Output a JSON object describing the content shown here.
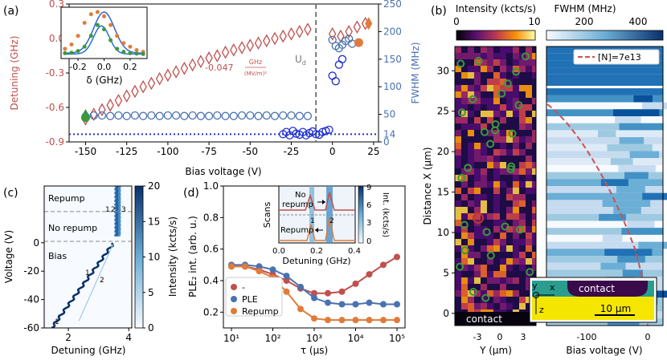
{
  "panel_labels": {
    "a": "(a)",
    "b": "(b)",
    "c": "(c)",
    "d": "(d)"
  },
  "colors": {
    "detuning": "#c0504d",
    "fwhm": "#4a72b0",
    "blue_dark": "#1f2fd0",
    "orange": "#e07b39",
    "green": "#3a9a3a",
    "dash": "#777777"
  },
  "chart_data": [
    {
      "id": "a",
      "type": "scatter",
      "xlabel": "Bias voltage (V)",
      "ylabel_left": "Detuning (GHz)",
      "ylabel_right": "FWHM (MHz)",
      "xlim": [
        -160,
        28
      ],
      "ylim_left": [
        -0.9,
        0.3
      ],
      "ylim_right": [
        0,
        250
      ],
      "x_ticks": [
        -150,
        -125,
        -100,
        -75,
        -50,
        -25,
        0,
        25
      ],
      "y_left_ticks": [
        -0.9,
        -0.6,
        -0.3,
        0.0,
        0.3
      ],
      "y_left_tick_labels": [
        "-0.9",
        "-0.6",
        "-0.3",
        "0.0",
        "0.3"
      ],
      "y_right_ticks": [
        0,
        50,
        100,
        150,
        200,
        250
      ],
      "y_right_tick_labels": [
        "0",
        "50",
        "100",
        "150",
        "200",
        "250"
      ],
      "extra_right_label": "14",
      "annotation_ud": "U",
      "annotation_ud_sub": "d",
      "annotation_slope": "-0.047",
      "annotation_slope_unit_top": "GHz",
      "annotation_slope_unit_bottom": "(MV/m)²",
      "ud_voltage": -10,
      "hline_fwhm_mhz": 14,
      "detuning_series": {
        "x": [
          -150,
          -145,
          -140,
          -135,
          -130,
          -125,
          -120,
          -115,
          -110,
          -105,
          -100,
          -95,
          -90,
          -85,
          -80,
          -75,
          -70,
          -65,
          -60,
          -55,
          -50,
          -45,
          -40,
          -35,
          -30,
          -25,
          -20,
          -15,
          0,
          5,
          10,
          15,
          20
        ],
        "y": [
          -0.7,
          -0.66,
          -0.62,
          -0.58,
          -0.54,
          -0.5,
          -0.46,
          -0.42,
          -0.39,
          -0.35,
          -0.32,
          -0.29,
          -0.26,
          -0.23,
          -0.2,
          -0.17,
          -0.15,
          -0.12,
          -0.1,
          -0.08,
          -0.06,
          -0.04,
          -0.02,
          0.0,
          0.02,
          0.04,
          0.06,
          0.08,
          0.04,
          0.02,
          0.06,
          0.1,
          0.13
        ]
      },
      "detuning_special": [
        {
          "x": -150,
          "y": -0.67,
          "color": "green"
        },
        {
          "x": 22,
          "y": 0.13,
          "color": "orange"
        }
      ],
      "fwhm_open_series": {
        "x": [
          -150,
          -145,
          -140,
          -135,
          -130,
          -125,
          -120,
          -115,
          -110,
          -105,
          -100,
          -95,
          -90,
          -85,
          -80,
          -75,
          -70,
          -65,
          -60,
          -55,
          -50,
          -45,
          -40,
          -35,
          -30,
          -25,
          -20,
          -15,
          0,
          2,
          4,
          6,
          8,
          10,
          12
        ],
        "y": [
          46,
          48,
          48,
          47,
          48,
          47,
          48,
          47,
          48,
          47,
          48,
          48,
          47,
          48,
          47,
          47,
          48,
          47,
          47,
          48,
          48,
          47,
          48,
          47,
          48,
          48,
          47,
          47,
          185,
          174,
          170,
          176,
          183,
          187,
          178
        ]
      },
      "fwhm_dark_series": {
        "x": [
          -30,
          -28,
          -26,
          -24,
          -22,
          -20,
          -18,
          -16,
          -14,
          -12,
          -10,
          -8,
          -6,
          -4,
          -2,
          0,
          2,
          4,
          6
        ],
        "y": [
          14,
          18,
          12,
          20,
          15,
          13,
          18,
          12,
          16,
          19,
          14,
          13,
          18,
          20,
          22,
          120,
          110,
          140,
          150
        ]
      },
      "fwhm_special": [
        {
          "x": -150,
          "y": 44,
          "color": "green"
        },
        {
          "x": 16,
          "y": 180,
          "color": "orange"
        }
      ],
      "inset": {
        "xlabel": "δ (GHz)",
        "x_ticks": [
          -0.2,
          0.0,
          0.2
        ],
        "x_tick_labels": [
          "-0.2",
          "0.0",
          "0.2"
        ],
        "series": [
          {
            "name": "orange",
            "x": [
              -0.3,
              -0.25,
              -0.2,
              -0.15,
              -0.1,
              -0.05,
              0.0,
              0.05,
              0.1,
              0.15,
              0.2,
              0.25,
              0.3
            ],
            "y": [
              0.15,
              0.25,
              0.45,
              0.75,
              0.95,
              1.0,
              0.9,
              0.7,
              0.45,
              0.28,
              0.2,
              0.12,
              0.08
            ]
          },
          {
            "name": "green",
            "x": [
              -0.3,
              -0.25,
              -0.2,
              -0.15,
              -0.1,
              -0.05,
              0.0,
              0.05,
              0.1,
              0.15,
              0.2,
              0.25,
              0.3
            ],
            "y": [
              0.05,
              0.06,
              0.1,
              0.2,
              0.45,
              0.7,
              0.6,
              0.35,
              0.15,
              0.08,
              0.05,
              0.04,
              0.03
            ]
          }
        ]
      }
    },
    {
      "id": "b",
      "type": "heatmap",
      "ylabel": "Distance X (μm)",
      "left": {
        "colorbar_label": "Intensity (kcts/s)",
        "colorbar_ticks": [
          "0",
          "10"
        ],
        "xlabel": "Y (μm)",
        "x_ticks": [
          "-3",
          "0",
          "3"
        ],
        "contact_label": "contact"
      },
      "right": {
        "colorbar_label": "FWHM (MHz)",
        "colorbar_ticks": [
          "200",
          "400"
        ],
        "xlabel": "Bias voltage (V)",
        "x_ticks": [
          "-100",
          "0"
        ],
        "legend_label": "[N]=7e13"
      },
      "y_ticks": [
        0,
        5,
        10,
        15,
        20,
        25,
        30
      ],
      "ylim": [
        -1.5,
        33
      ],
      "inset": {
        "contact_label": "contact",
        "scale_label": "10 μm",
        "axis_y": "y",
        "axis_x": "x",
        "axis_z": "z"
      }
    },
    {
      "id": "c",
      "type": "heatmap",
      "xlabel": "Detuning (GHz)",
      "ylabel": "Voltage (V)",
      "colorbar_label": "Intensity (kcts/s)",
      "x_ticks": [
        2,
        4
      ],
      "xlim": [
        1.2,
        4.1
      ],
      "y_ticks": [
        -60,
        -40,
        -20,
        0
      ],
      "ylim": [
        -60,
        40
      ],
      "colorbar_ticks": [
        0,
        5,
        10,
        15,
        20
      ],
      "region_labels": [
        "Repump",
        "No repump",
        "Bias"
      ],
      "mark_labels": [
        "1",
        "2",
        "1",
        "2",
        "3",
        "1"
      ]
    },
    {
      "id": "d",
      "type": "scatter",
      "xlabel": "τ (μs)",
      "ylabel": "PLE₂ int. (arb. u.)",
      "ylim": [
        0.1,
        1.0
      ],
      "y_ticks": [
        0.2,
        0.4,
        0.6,
        0.8,
        1.0
      ],
      "y_tick_labels": [
        "0.2",
        "0.4",
        "0.6",
        "0.8",
        "1.0"
      ],
      "x_tick_labels": [
        "10¹",
        "10²",
        "10³",
        "10⁴",
        "10⁵"
      ],
      "legend": [
        "-",
        "PLE",
        "Repump"
      ],
      "series": [
        {
          "name": "-",
          "log_tau": [
            1.0,
            1.33,
            1.67,
            2.0,
            2.33,
            2.67,
            3.0,
            3.33,
            3.67,
            4.0,
            4.33,
            4.67,
            5.0
          ],
          "y": [
            0.49,
            0.49,
            0.47,
            0.44,
            0.4,
            0.35,
            0.32,
            0.32,
            0.33,
            0.38,
            0.44,
            0.5,
            0.55
          ]
        },
        {
          "name": "PLE",
          "log_tau": [
            1.0,
            1.33,
            1.67,
            2.0,
            2.33,
            2.67,
            3.0,
            3.33,
            3.67,
            4.0,
            4.33,
            4.67,
            5.0
          ],
          "y": [
            0.5,
            0.5,
            0.49,
            0.47,
            0.43,
            0.36,
            0.29,
            0.26,
            0.25,
            0.25,
            0.26,
            0.25,
            0.25
          ]
        },
        {
          "name": "Repump",
          "log_tau": [
            1.0,
            1.33,
            1.67,
            2.0,
            2.33,
            2.67,
            3.0,
            3.33,
            3.67,
            4.0,
            4.33,
            4.67,
            5.0
          ],
          "y": [
            0.49,
            0.49,
            0.46,
            0.42,
            0.33,
            0.22,
            0.16,
            0.15,
            0.15,
            0.15,
            0.15,
            0.15,
            0.15
          ]
        }
      ],
      "inset": {
        "ylabel": "Scans",
        "xlabel": "Detuning (GHz)",
        "x_ticks": [
          "0.0",
          "0.2",
          "0.4"
        ],
        "y2_label": "Int. (kcts/s)",
        "y2_ticks": [
          "0",
          "3",
          "6",
          "9"
        ],
        "text_no_repump_1": "No",
        "text_no_repump_2": "repump",
        "text_repump": "Repump",
        "peak_labels": [
          "1",
          "2"
        ]
      }
    }
  ]
}
